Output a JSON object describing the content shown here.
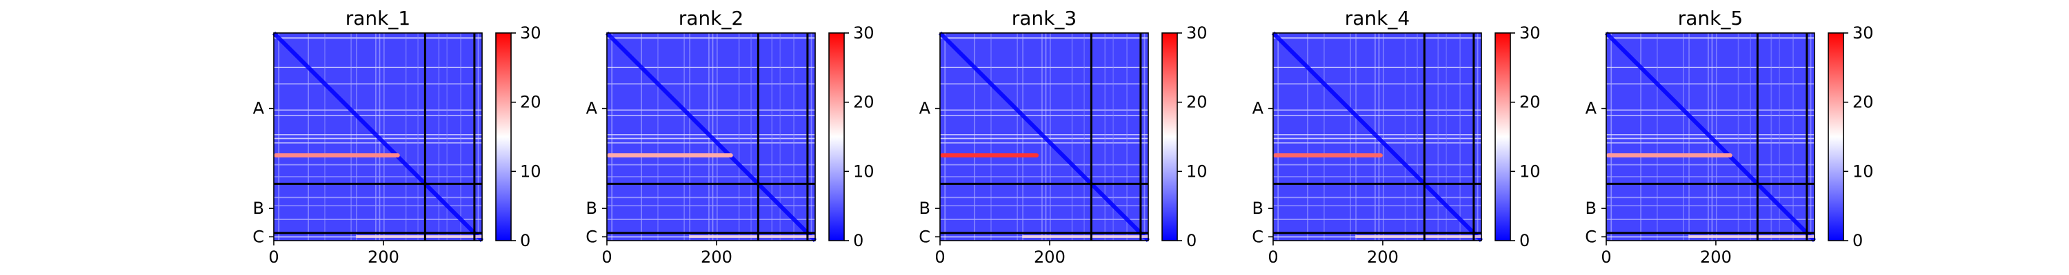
{
  "chart_data": {
    "type": "heatmap",
    "colormap": {
      "low": "#0000ff",
      "mid": "#ffffff",
      "high": "#ff0000"
    },
    "value_range": [
      0,
      30
    ],
    "colorbar_ticks": [
      0,
      10,
      20,
      30
    ],
    "colorbar_tick_labels": [
      "0",
      "10",
      "20",
      "30"
    ],
    "x_ticks": [
      0,
      200
    ],
    "x_tick_labels": [
      "0",
      "200"
    ],
    "residue_count": 380,
    "chains": [
      {
        "label": "A",
        "start": 0,
        "end": 276
      },
      {
        "label": "B",
        "start": 276,
        "end": 366
      },
      {
        "label": "C",
        "start": 366,
        "end": 380
      }
    ],
    "panels": [
      {
        "title": "rank_1",
        "bright_rows": [
          {
            "residue": 224,
            "value": 22,
            "x_from": 0,
            "x_to": 230
          }
        ]
      },
      {
        "title": "rank_2",
        "bright_rows": [
          {
            "residue": 224,
            "value": 20,
            "x_from": 0,
            "x_to": 230
          }
        ]
      },
      {
        "title": "rank_3",
        "bright_rows": [
          {
            "residue": 224,
            "value": 27,
            "x_from": 0,
            "x_to": 180
          }
        ]
      },
      {
        "title": "rank_4",
        "bright_rows": [
          {
            "residue": 224,
            "value": 24,
            "x_from": 0,
            "x_to": 200
          }
        ]
      },
      {
        "title": "rank_5",
        "bright_rows": [
          {
            "residue": 224,
            "value": 21,
            "x_from": 0,
            "x_to": 230
          }
        ]
      }
    ]
  }
}
